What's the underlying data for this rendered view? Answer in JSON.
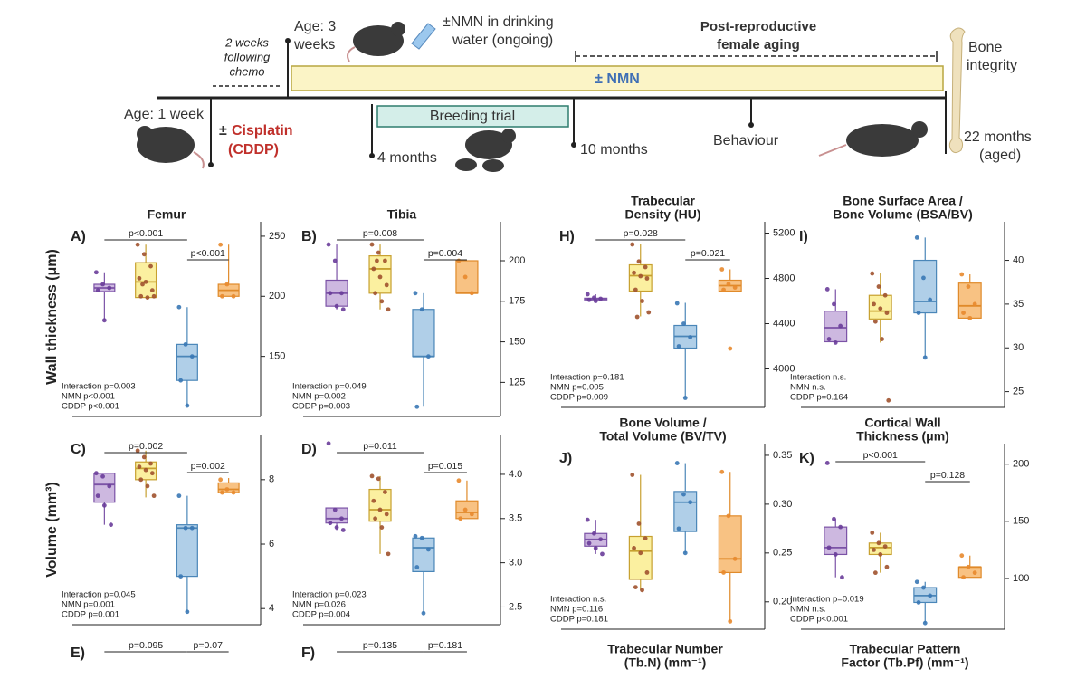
{
  "timeline": {
    "age_start": "Age: 1 week",
    "chemo_window": [
      "2 weeks",
      "following",
      "chemo"
    ],
    "cisplatin": {
      "prefix": "±",
      "name": "Cisplatin",
      "abbr": "(CDDP)"
    },
    "age_wean": [
      "Age: 3",
      "weeks"
    ],
    "nmn_start": [
      "±NMN in drinking",
      "water (ongoing)"
    ],
    "nmn_bar": "± NMN",
    "breeding": "Breeding trial",
    "aging": [
      "Post-reproductive",
      "female aging"
    ],
    "endpoint": [
      "Bone",
      "integrity"
    ],
    "milestones": [
      "4 months",
      "10 months",
      "Behaviour"
    ],
    "end_age": [
      "22 months",
      "(aged)"
    ]
  },
  "row_labels": [
    "Wall thickness (μm)",
    "Volume (mm³)"
  ],
  "group_colors": [
    {
      "fill": "#cdb8e0",
      "stroke": "#7b52a6",
      "point": "#6a3d9a"
    },
    {
      "fill": "#fbf0a0",
      "stroke": "#c7a030",
      "point": "#a0522d"
    },
    {
      "fill": "#b0cfe8",
      "stroke": "#4a86b8",
      "point": "#3a78b5"
    },
    {
      "fill": "#f8c283",
      "stroke": "#e08a2a",
      "point": "#e8892e"
    }
  ],
  "panels": [
    {
      "label": "A)",
      "title": [
        "Femur"
      ],
      "ylim": [
        100,
        262
      ],
      "yticks": [
        150,
        200,
        250
      ],
      "groups": [
        {
          "box": [
            180,
            204,
            207,
            210,
            220
          ],
          "points": [
            220,
            210,
            207,
            205,
            180
          ]
        },
        {
          "box": [
            199,
            199,
            212,
            228,
            243
          ],
          "points": [
            243,
            235,
            225,
            215,
            212,
            205,
            200,
            199,
            200,
            210
          ]
        },
        {
          "box": [
            109,
            130,
            150,
            160,
            191
          ],
          "points": [
            191,
            160,
            150,
            130,
            109
          ]
        },
        {
          "box": [
            200,
            200,
            205,
            210,
            243
          ],
          "points": [
            243,
            210,
            200,
            200
          ]
        }
      ],
      "brackets": [
        "p<0.001",
        "p<0.001"
      ],
      "stats": [
        "Interaction p=0.003",
        "NMN p<0.001",
        "CDDP p<0.001"
      ]
    },
    {
      "label": "B)",
      "title": [
        "Tibia"
      ],
      "ylim": [
        104,
        224
      ],
      "yticks": [
        125,
        150,
        175,
        200
      ],
      "groups": [
        {
          "box": [
            170,
            172,
            180,
            188,
            210
          ],
          "points": [
            210,
            200,
            180,
            180,
            172,
            170
          ]
        },
        {
          "box": [
            170,
            180,
            195,
            203,
            210
          ],
          "points": [
            210,
            205,
            200,
            195,
            190,
            185,
            180,
            175,
            170,
            200
          ]
        },
        {
          "box": [
            110,
            141,
            141,
            170,
            180
          ],
          "points": [
            180,
            170,
            141,
            110
          ]
        },
        {
          "box": [
            180,
            180,
            180,
            200,
            200
          ],
          "points": [
            200,
            190,
            180
          ]
        }
      ],
      "brackets": [
        "p=0.008",
        "p=0.004"
      ],
      "stats": [
        "Interaction p=0.049",
        "NMN p=0.002",
        "CDDP p=0.003"
      ]
    },
    {
      "label": "C)",
      "ylim": [
        3.5,
        9.4
      ],
      "yticks": [
        4,
        6,
        8
      ],
      "groups": [
        {
          "box": [
            6.6,
            7.3,
            7.85,
            8.2,
            8.2
          ],
          "points": [
            8.2,
            8.1,
            7.8,
            7.5,
            7.2,
            6.6
          ]
        },
        {
          "box": [
            7.45,
            8,
            8.35,
            8.55,
            8.9
          ],
          "points": [
            8.9,
            8.7,
            8.5,
            8.4,
            8.3,
            8.2,
            8,
            7.8,
            7.5
          ]
        },
        {
          "box": [
            3.9,
            5,
            6.5,
            6.6,
            7.5
          ],
          "points": [
            7.5,
            6.5,
            6.5,
            5,
            3.9
          ]
        },
        {
          "box": [
            7.6,
            7.6,
            7.7,
            7.9,
            8.05
          ],
          "points": [
            8,
            7.7,
            7.6,
            7.6
          ]
        }
      ],
      "brackets": [
        "p=0.002",
        "p=0.002"
      ],
      "stats": [
        "Interaction p=0.045",
        "NMN p=0.001",
        "CDDP p=0.001"
      ]
    },
    {
      "label": "D)",
      "ylim": [
        2.3,
        4.45
      ],
      "yticks": [
        {
          "value": 2.5,
          "label": "2.5"
        },
        {
          "value": 3,
          "label": "3.0"
        },
        {
          "value": 3.5,
          "label": "3.5"
        },
        {
          "value": 4,
          "label": "4.0"
        }
      ],
      "groups": [
        {
          "box": [
            3.37,
            3.45,
            3.5,
            3.62,
            3.62
          ],
          "points": [
            4.35,
            3.6,
            3.5,
            3.45,
            3.4,
            3.37
          ]
        },
        {
          "box": [
            3.1,
            3.47,
            3.6,
            3.83,
            3.98
          ],
          "points": [
            3.98,
            3.95,
            3.8,
            3.7,
            3.6,
            3.55,
            3.5,
            3.4,
            3.1
          ]
        },
        {
          "box": [
            2.43,
            2.9,
            3.17,
            3.28,
            3.3
          ],
          "points": [
            3.3,
            3.28,
            3.15,
            2.95,
            2.43
          ]
        },
        {
          "box": [
            3.5,
            3.5,
            3.57,
            3.7,
            3.93
          ],
          "points": [
            3.93,
            3.6,
            3.55,
            3.5
          ]
        }
      ],
      "brackets": [
        "p=0.011",
        "p=0.015"
      ],
      "stats": [
        "Interaction p=0.023",
        "NMN p=0.026",
        "CDDP p=0.004"
      ]
    },
    {
      "label": "E)",
      "brackets": [
        "p=0.095",
        "p=0.07"
      ]
    },
    {
      "label": "F)",
      "brackets": [
        "p=0.135",
        "p=0.181"
      ]
    },
    {
      "label": "H)",
      "title": [
        "Trabecular",
        "Density (HU)"
      ],
      "ylim": [
        3660,
        5300
      ],
      "yticks": [
        4000,
        4400,
        4800,
        5200
      ],
      "groups": [
        {
          "box": [
            4600,
            4610,
            4620,
            4625,
            4660
          ],
          "points": [
            4660,
            4630,
            4620,
            4610,
            4600
          ]
        },
        {
          "box": [
            4464,
            4688,
            4824,
            4920,
            5104
          ],
          "points": [
            5100,
            4950,
            4900,
            4850,
            4820,
            4800,
            4700,
            4600,
            4500,
            4460
          ]
        },
        {
          "box": [
            3744,
            4184,
            4288,
            4384,
            4584
          ],
          "points": [
            4580,
            4400,
            4280,
            4200,
            3744
          ]
        },
        {
          "box": [
            4688,
            4688,
            4736,
            4784,
            4880
          ],
          "points": [
            4880,
            4750,
            4720,
            4700,
            4180
          ]
        }
      ],
      "brackets": [
        "p=0.028",
        "p=0.021"
      ],
      "stats": [
        "Interaction p=0.181",
        "NMN p=0.005",
        "CDDP p=0.009"
      ]
    },
    {
      "label": "I)",
      "title": [
        "Bone Surface Area /",
        "Bone Volume (BSA/BV)"
      ],
      "ylim": [
        23.2,
        44.4
      ],
      "yticks": [
        25,
        30,
        35,
        40
      ],
      "groups": [
        {
          "box": [
            30.6,
            30.7,
            32.3,
            34.2,
            36.7
          ],
          "points": [
            36.7,
            35,
            32.5,
            31,
            30.6
          ]
        },
        {
          "box": [
            30.6,
            33.3,
            34.2,
            36,
            38.5
          ],
          "points": [
            38.5,
            37,
            36,
            35,
            34.5,
            34,
            33,
            31,
            24
          ]
        },
        {
          "box": [
            28.9,
            34,
            35.3,
            40,
            42.6
          ],
          "points": [
            42.6,
            38,
            35.5,
            34,
            28.9
          ]
        },
        {
          "box": [
            33.4,
            33.4,
            34.8,
            37.4,
            38.4
          ],
          "points": [
            38.4,
            37,
            35,
            34,
            33.4
          ]
        }
      ],
      "brackets": [],
      "stats": [
        "Interaction n.s.",
        "NMN n.s.",
        "CDDP p=0.164"
      ]
    },
    {
      "label": "J)",
      "title": [
        "Bone Volume /",
        "Total Volume (BV/TV)"
      ],
      "ylim": [
        0.172,
        0.362
      ],
      "yticks": [
        {
          "value": 0.2,
          "label": "0.20"
        },
        0.25,
        {
          "value": 0.3,
          "label": "0.30"
        },
        0.35
      ],
      "groups": [
        {
          "box": [
            0.249,
            0.257,
            0.264,
            0.27,
            0.284
          ],
          "points": [
            0.284,
            0.27,
            0.264,
            0.26,
            0.255,
            0.249
          ]
        },
        {
          "box": [
            0.212,
            0.223,
            0.252,
            0.267,
            0.33
          ],
          "points": [
            0.33,
            0.28,
            0.265,
            0.255,
            0.25,
            0.23,
            0.215,
            0.212
          ]
        },
        {
          "box": [
            0.25,
            0.272,
            0.302,
            0.313,
            0.342
          ],
          "points": [
            0.342,
            0.31,
            0.302,
            0.275,
            0.25
          ]
        },
        {
          "box": [
            0.18,
            0.23,
            0.244,
            0.288,
            0.333
          ],
          "points": [
            0.333,
            0.288,
            0.244,
            0.23,
            0.18
          ]
        }
      ],
      "brackets": [],
      "stats": [
        "Interaction n.s.",
        "NMN p=0.116",
        "CDDP p=0.181"
      ]
    },
    {
      "label": "K)",
      "title": [
        "Cortical Wall",
        "Thickness (μm)"
      ],
      "ylim": [
        55.6,
        218
      ],
      "yticks": [
        100,
        150,
        200
      ],
      "groups": [
        {
          "box": [
            101,
            121,
            127,
            145,
            152
          ],
          "points": [
            201,
            152,
            145,
            127,
            121,
            101
          ]
        },
        {
          "box": [
            105,
            121,
            127,
            131,
            140
          ],
          "points": [
            140,
            131,
            128,
            125,
            121,
            110,
            105
          ]
        },
        {
          "box": [
            61,
            79,
            85,
            92,
            97
          ],
          "points": [
            97,
            92,
            85,
            79,
            61
          ]
        },
        {
          "box": [
            101,
            101,
            110,
            110,
            120
          ],
          "points": [
            120,
            110,
            105,
            101
          ]
        }
      ],
      "brackets": [
        "p<0.001",
        "p=0.128"
      ],
      "stats": [
        "Interaction p=0.019",
        "NMN n.s.",
        "CDDP p<0.001"
      ]
    }
  ],
  "partial_titles": [
    [
      "Trabecular Number",
      "(Tb.N) (mm⁻¹)"
    ],
    [
      "Trabecular Pattern",
      "Factor (Tb.Pf) (mm⁻¹)"
    ]
  ]
}
